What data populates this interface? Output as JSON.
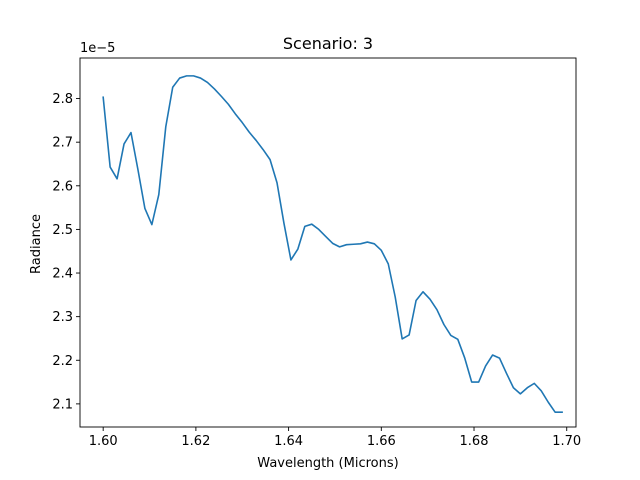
{
  "chart_data": {
    "type": "line",
    "title": "Scenario: 3",
    "xlabel": "Wavelength (Microns)",
    "ylabel": "Radiance",
    "y_offset_label": "1e−5",
    "y_scale": 1e-05,
    "xlim": [
      1.595,
      1.702
    ],
    "ylim": [
      2.047e-05,
      2.893e-05
    ],
    "x_ticks": [
      1.6,
      1.62,
      1.64,
      1.66,
      1.68,
      1.7
    ],
    "x_tick_labels": [
      "1.60",
      "1.62",
      "1.64",
      "1.66",
      "1.68",
      "1.70"
    ],
    "y_ticks": [
      2.1e-05,
      2.2e-05,
      2.3e-05,
      2.4e-05,
      2.5e-05,
      2.6e-05,
      2.7e-05,
      2.8e-05
    ],
    "y_tick_labels": [
      "2.1",
      "2.2",
      "2.3",
      "2.4",
      "2.5",
      "2.6",
      "2.7",
      "2.8"
    ],
    "grid": false,
    "line_color": "#1f77b4",
    "series": [
      {
        "x": [
          1.6,
          1.6015,
          1.603,
          1.6045,
          1.606,
          1.6075,
          1.609,
          1.6105,
          1.612,
          1.6135,
          1.615,
          1.6165,
          1.618,
          1.6195,
          1.621,
          1.6225,
          1.624,
          1.6255,
          1.627,
          1.6285,
          1.63,
          1.6315,
          1.633,
          1.6345,
          1.636,
          1.6375,
          1.639,
          1.6405,
          1.642,
          1.6435,
          1.645,
          1.6465,
          1.648,
          1.6495,
          1.651,
          1.6525,
          1.654,
          1.6555,
          1.657,
          1.6585,
          1.66,
          1.6615,
          1.663,
          1.6645,
          1.666,
          1.6675,
          1.669,
          1.6705,
          1.672,
          1.6735,
          1.675,
          1.6765,
          1.678,
          1.6795,
          1.681,
          1.6825,
          1.684,
          1.6855,
          1.687,
          1.6885,
          1.69,
          1.6915,
          1.693,
          1.6945,
          1.696,
          1.6975,
          1.699
        ],
        "y": [
          2.803e-05,
          2.643e-05,
          2.616e-05,
          2.696e-05,
          2.722e-05,
          2.637e-05,
          2.548e-05,
          2.511e-05,
          2.58e-05,
          2.735e-05,
          2.826e-05,
          2.847e-05,
          2.852e-05,
          2.852e-05,
          2.847e-05,
          2.837e-05,
          2.822e-05,
          2.805e-05,
          2.787e-05,
          2.765e-05,
          2.745e-05,
          2.723e-05,
          2.704e-05,
          2.683e-05,
          2.66e-05,
          2.607e-05,
          2.514e-05,
          2.43e-05,
          2.455e-05,
          2.507e-05,
          2.512e-05,
          2.5e-05,
          2.484e-05,
          2.468e-05,
          2.46e-05,
          2.465e-05,
          2.466e-05,
          2.467e-05,
          2.471e-05,
          2.467e-05,
          2.452e-05,
          2.421e-05,
          2.345e-05,
          2.249e-05,
          2.258e-05,
          2.337e-05,
          2.357e-05,
          2.34e-05,
          2.316e-05,
          2.282e-05,
          2.257e-05,
          2.248e-05,
          2.205e-05,
          2.15e-05,
          2.15e-05,
          2.187e-05,
          2.212e-05,
          2.205e-05,
          2.17e-05,
          2.137e-05,
          2.123e-05,
          2.137e-05,
          2.147e-05,
          2.13e-05,
          2.104e-05,
          2.081e-05,
          2.081e-05
        ]
      }
    ]
  }
}
